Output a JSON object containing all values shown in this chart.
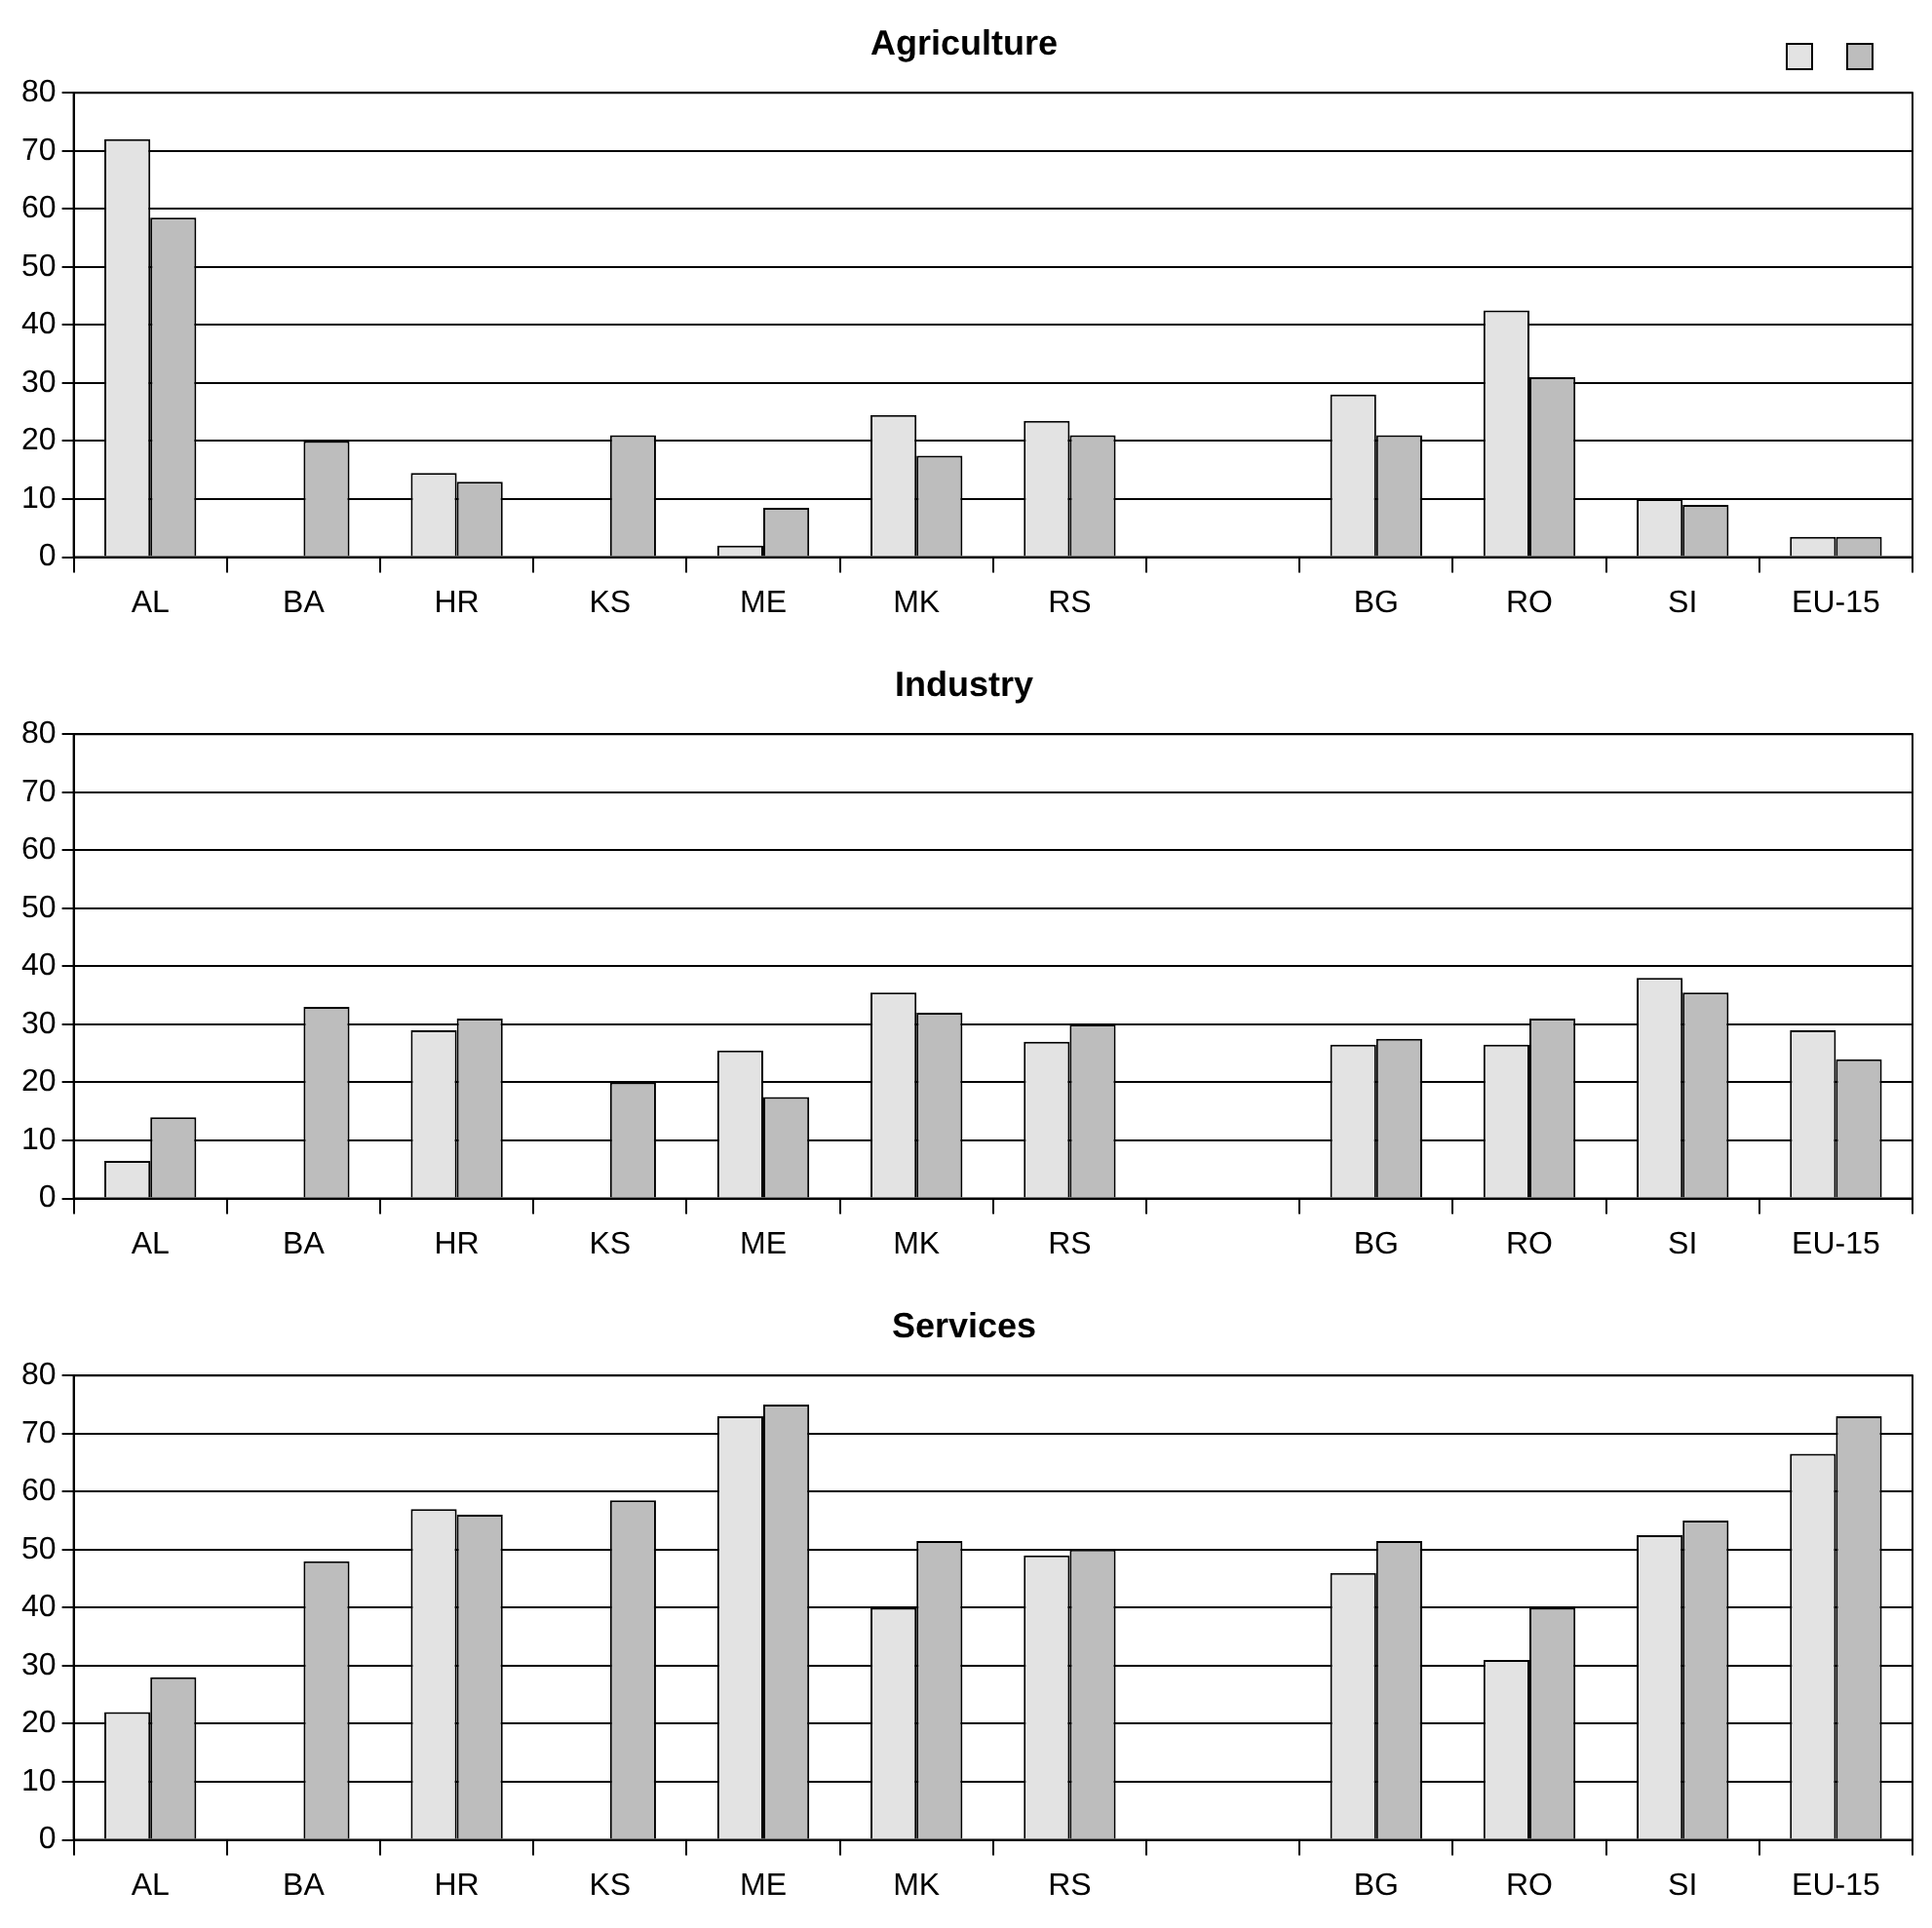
{
  "chart_data": [
    {
      "type": "bar",
      "title": "Agriculture",
      "categories": [
        "AL",
        "BA",
        "HR",
        "KS",
        "ME",
        "MK",
        "RS",
        null,
        "BG",
        "RO",
        "SI",
        "EU-15"
      ],
      "series": [
        {
          "color": "#e3e3e3",
          "values": [
            72,
            null,
            14.5,
            null,
            2,
            24.5,
            23.5,
            null,
            28,
            42.5,
            10,
            3.5
          ]
        },
        {
          "color": "#bdbdbd",
          "values": [
            58.5,
            20,
            13,
            21,
            8.5,
            17.5,
            21,
            null,
            21,
            31,
            9,
            3.5
          ]
        }
      ],
      "ylim": [
        0,
        80
      ],
      "yticks": [
        0,
        10,
        20,
        30,
        40,
        50,
        60,
        70,
        80
      ],
      "grid": "y"
    },
    {
      "type": "bar",
      "title": "Industry",
      "categories": [
        "AL",
        "BA",
        "HR",
        "KS",
        "ME",
        "MK",
        "RS",
        null,
        "BG",
        "RO",
        "SI",
        "EU-15"
      ],
      "series": [
        {
          "color": "#e3e3e3",
          "values": [
            6.5,
            null,
            29,
            null,
            25.5,
            35.5,
            27,
            null,
            26.5,
            26.5,
            38,
            29
          ]
        },
        {
          "color": "#bdbdbd",
          "values": [
            14,
            33,
            31,
            20,
            17.5,
            32,
            30,
            null,
            27.5,
            31,
            35.5,
            24
          ]
        }
      ],
      "ylim": [
        0,
        80
      ],
      "yticks": [
        0,
        10,
        20,
        30,
        40,
        50,
        60,
        70,
        80
      ],
      "grid": "y"
    },
    {
      "type": "bar",
      "title": "Services",
      "categories": [
        "AL",
        "BA",
        "HR",
        "KS",
        "ME",
        "MK",
        "RS",
        null,
        "BG",
        "RO",
        "SI",
        "EU-15"
      ],
      "series": [
        {
          "color": "#e3e3e3",
          "values": [
            22,
            null,
            57,
            null,
            73,
            40,
            49,
            null,
            46,
            31,
            52.5,
            66.5
          ]
        },
        {
          "color": "#bdbdbd",
          "values": [
            28,
            48,
            56,
            58.5,
            75,
            51.5,
            50,
            null,
            51.5,
            40,
            55,
            73
          ]
        }
      ],
      "ylim": [
        0,
        80
      ],
      "yticks": [
        0,
        10,
        20,
        30,
        40,
        50,
        60,
        70,
        80
      ],
      "grid": "y"
    }
  ]
}
